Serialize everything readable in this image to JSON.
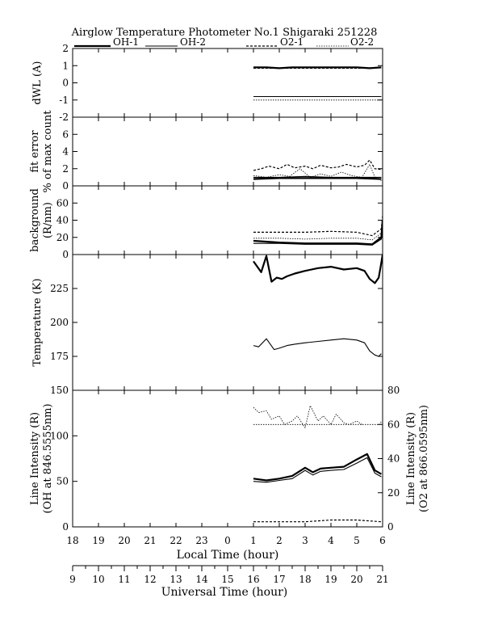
{
  "chart_data": {
    "type": "line",
    "title": "Airglow Temperature Photometer No.1   Shigaraki   251228",
    "legend": [
      {
        "name": "OH-1",
        "style": "solid-thick",
        "color": "#000000"
      },
      {
        "name": "OH-2",
        "style": "solid-thin",
        "color": "#000000"
      },
      {
        "name": "O2-1",
        "style": "dashed",
        "color": "#000000"
      },
      {
        "name": "O2-2",
        "style": "dotted",
        "color": "#000000"
      }
    ],
    "x_local": {
      "label": "Local Time (hour)",
      "range": [
        18,
        30
      ],
      "ticks": [
        18,
        19,
        20,
        21,
        22,
        23,
        24,
        25,
        26,
        27,
        28,
        29,
        30
      ],
      "tick_labels": [
        "18",
        "19",
        "20",
        "21",
        "22",
        "23",
        "0",
        "1",
        "2",
        "3",
        "4",
        "5",
        "6"
      ]
    },
    "x_ut": {
      "label": "Universal Time (hour)",
      "range": [
        9,
        21
      ],
      "ticks": [
        9,
        10,
        11,
        12,
        13,
        14,
        15,
        16,
        17,
        18,
        19,
        20,
        21
      ],
      "tick_labels": [
        "9",
        "10",
        "11",
        "12",
        "13",
        "14",
        "15",
        "16",
        "17",
        "18",
        "19",
        "20",
        "21"
      ]
    },
    "panels": [
      {
        "id": "dwl",
        "ylabel_lines": [
          "dWL (A)"
        ],
        "ylim": [
          -2,
          2
        ],
        "yticks": [
          -2,
          -1,
          0,
          1,
          2
        ],
        "ytick_labels": [
          "-2",
          "-1",
          "0",
          "1",
          "2"
        ],
        "series": [
          {
            "name": "OH-1",
            "x": [
              25,
              25.5,
              26,
              26.5,
              27,
              27.5,
              28,
              28.5,
              29,
              29.5,
              29.95
            ],
            "y": [
              0.9,
              0.9,
              0.85,
              0.9,
              0.9,
              0.9,
              0.9,
              0.9,
              0.9,
              0.85,
              0.9
            ]
          },
          {
            "name": "OH-2",
            "x": [
              25,
              25.5,
              26,
              26.5,
              27,
              27.5,
              28,
              28.5,
              29,
              29.5,
              29.95
            ],
            "y": [
              -0.8,
              -0.8,
              -0.8,
              -0.8,
              -0.8,
              -0.8,
              -0.8,
              -0.8,
              -0.8,
              -0.8,
              -0.8
            ]
          },
          {
            "name": "O2-1",
            "x": [
              25,
              29.5,
              29.95
            ],
            "y": [
              0.85,
              0.85,
              0.9
            ]
          },
          {
            "name": "O2-2",
            "x": [
              25,
              25.5,
              26,
              26.5,
              27,
              27.5,
              28,
              28.5,
              29,
              29.5,
              29.95
            ],
            "y": [
              -1.0,
              -1.0,
              -1.0,
              -1.0,
              -1.0,
              -1.0,
              -1.0,
              -1.0,
              -1.0,
              -1.0,
              -1.0
            ]
          }
        ]
      },
      {
        "id": "fit",
        "ylabel_lines": [
          "fit error",
          "% of max count"
        ],
        "ylim": [
          0,
          8
        ],
        "yticks": [
          0,
          2,
          4,
          6
        ],
        "ytick_labels": [
          "0",
          "2",
          "4",
          "6"
        ],
        "series": [
          {
            "name": "OH-1",
            "x": [
              25,
              26,
              27,
              28,
              29,
              29.95
            ],
            "y": [
              0.8,
              0.9,
              0.9,
              0.9,
              0.9,
              0.8
            ]
          },
          {
            "name": "OH-2",
            "x": [
              25,
              26,
              27,
              28,
              29,
              29.95
            ],
            "y": [
              1.0,
              1.0,
              1.1,
              1.0,
              1.0,
              1.0
            ]
          },
          {
            "name": "O2-1",
            "x": [
              25,
              25.3,
              25.6,
              26,
              26.3,
              26.6,
              27,
              27.3,
              27.6,
              28,
              28.3,
              28.6,
              29,
              29.3,
              29.5,
              29.7,
              29.95
            ],
            "y": [
              1.8,
              2.0,
              2.3,
              2.0,
              2.5,
              2.1,
              2.3,
              2.0,
              2.4,
              2.1,
              2.2,
              2.5,
              2.2,
              2.4,
              3.0,
              2.0,
              1.9
            ]
          },
          {
            "name": "O2-2",
            "x": [
              25,
              25.5,
              26,
              26.4,
              26.8,
              27.2,
              27.6,
              28,
              28.4,
              28.8,
              29.2,
              29.5,
              29.7,
              29.95
            ],
            "y": [
              1.2,
              1.0,
              1.3,
              1.1,
              2.0,
              1.0,
              1.4,
              1.1,
              1.6,
              1.2,
              1.0,
              2.5,
              1.0,
              0.6
            ]
          }
        ]
      },
      {
        "id": "bg",
        "ylabel_lines": [
          "background",
          "(R/nm)"
        ],
        "ylim": [
          0,
          80
        ],
        "yticks": [
          0,
          20,
          40,
          60
        ],
        "ytick_labels": [
          "0",
          "20",
          "40",
          "60"
        ],
        "series": [
          {
            "name": "OH-1",
            "x": [
              25,
              26,
              27,
              28,
              29,
              29.6,
              29.95,
              30
            ],
            "y": [
              16,
              14,
              13,
              13,
              13,
              12,
              20,
              40
            ]
          },
          {
            "name": "OH-2",
            "x": [
              25,
              26,
              27,
              28,
              29,
              29.6,
              29.95,
              30
            ],
            "y": [
              13,
              13,
              12,
              12,
              12,
              11,
              18,
              35
            ]
          },
          {
            "name": "O2-1",
            "x": [
              25,
              26,
              27,
              28,
              29,
              29.6,
              29.95,
              30
            ],
            "y": [
              26,
              26,
              26,
              27,
              26,
              22,
              30,
              45
            ]
          },
          {
            "name": "O2-2",
            "x": [
              25,
              26,
              27,
              28,
              29,
              29.6,
              29.95,
              30
            ],
            "y": [
              19,
              19,
              18,
              19,
              19,
              17,
              25,
              38
            ]
          }
        ]
      },
      {
        "id": "temp",
        "ylabel_lines": [
          "Temperature (K)"
        ],
        "ylim": [
          150,
          250
        ],
        "yticks": [
          175,
          200,
          225
        ],
        "ytick_labels": [
          "175",
          "200",
          "225"
        ],
        "series": [
          {
            "name": "OH-1",
            "x": [
              25,
              25.3,
              25.5,
              25.7,
              25.9,
              26.1,
              26.3,
              26.6,
              27,
              27.5,
              28,
              28.5,
              29,
              29.3,
              29.5,
              29.7,
              29.85,
              29.95,
              30
            ],
            "y": [
              245,
              237,
              249,
              230,
              233,
              232,
              234,
              236,
              238,
              240,
              241,
              239,
              240,
              238,
              232,
              229,
              233,
              244,
              250
            ]
          },
          {
            "name": "OH-2",
            "x": [
              25,
              25.2,
              25.5,
              25.8,
              26,
              26.3,
              26.6,
              27,
              27.5,
              28,
              28.5,
              29,
              29.3,
              29.5,
              29.7,
              29.85,
              29.95
            ],
            "y": [
              183,
              182,
              188,
              180,
              181,
              183,
              184,
              185,
              186,
              187,
              188,
              187,
              185,
              179,
              176,
              175,
              177
            ]
          }
        ]
      },
      {
        "id": "intensity",
        "ylabel_lines": [
          "Line Intensity (R)",
          "(OH at 846.5555nm)"
        ],
        "y2label_lines": [
          "Line Intensity (R)",
          "(O2 at 866.0595nm)"
        ],
        "ylim": [
          0,
          150
        ],
        "yticks": [
          0,
          50,
          100,
          150
        ],
        "ytick_labels": [
          "0",
          "50",
          "100",
          "150"
        ],
        "y2lim": [
          0,
          80
        ],
        "y2ticks": [
          0,
          20,
          40,
          60,
          80
        ],
        "y2tick_labels": [
          "0",
          "20",
          "40",
          "60",
          "80"
        ],
        "series": [
          {
            "name": "OH-1",
            "axis": "left",
            "x": [
              25,
              25.5,
              26,
              26.5,
              27,
              27.3,
              27.6,
              28,
              28.5,
              29,
              29.4,
              29.7,
              29.95
            ],
            "y": [
              53,
              51,
              53,
              56,
              65,
              60,
              64,
              65,
              66,
              74,
              80,
              62,
              58
            ]
          },
          {
            "name": "OH-2",
            "axis": "left",
            "x": [
              25,
              25.5,
              26,
              26.5,
              27,
              27.3,
              27.6,
              28,
              28.5,
              29,
              29.4,
              29.7,
              29.95
            ],
            "y": [
              50,
              49,
              51,
              53,
              62,
              57,
              61,
              62,
              63,
              70,
              76,
              59,
              55
            ]
          },
          {
            "name": "O2-1",
            "axis": "right",
            "x": [
              25,
              26,
              27,
              28,
              29,
              29.95
            ],
            "y": [
              3,
              3,
              3,
              4,
              4,
              3
            ]
          },
          {
            "name": "O2-2",
            "axis": "right",
            "x": [
              25,
              25.2,
              25.5,
              25.7,
              26,
              26.2,
              26.5,
              26.7,
              27,
              27.2,
              27.5,
              27.7,
              28,
              28.2,
              28.5,
              28.7,
              29,
              29.2
            ],
            "y": [
              70,
              67,
              68,
              63,
              65,
              60,
              62,
              65,
              58,
              71,
              62,
              65,
              60,
              66,
              61,
              60,
              62,
              60
            ]
          },
          {
            "name": "O2-2",
            "axis": "right",
            "x": [
              25,
              29.9,
              29.95
            ],
            "y": [
              60,
              60,
              62
            ]
          }
        ]
      }
    ]
  }
}
